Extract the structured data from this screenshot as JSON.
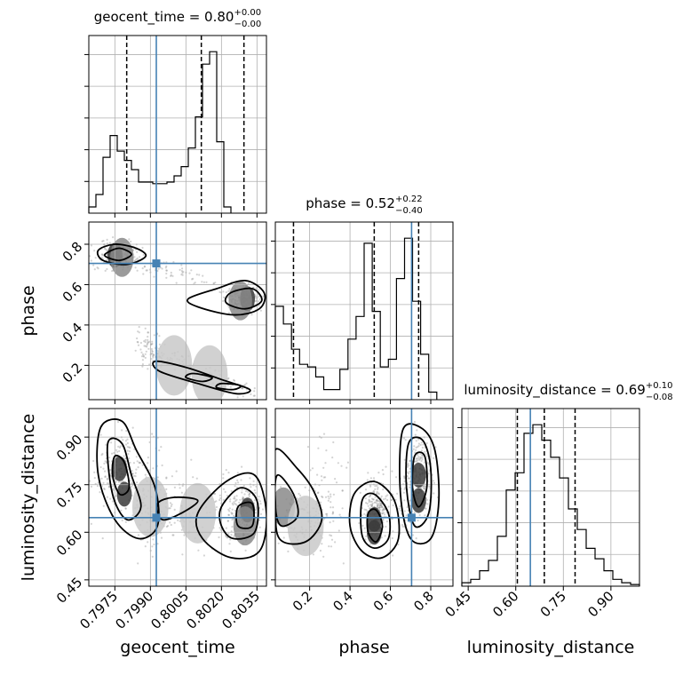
{
  "chart_data": {
    "type": "corner",
    "parameters": [
      "geocent_time",
      "phase",
      "luminosity_distance"
    ],
    "axis_labels": [
      "geocent_time",
      "phase",
      "luminosity_distance"
    ],
    "titles": [
      {
        "param": "geocent_time",
        "name": "geocent_time",
        "median": "0.80",
        "plus": "+0.00",
        "minus": "−0.00"
      },
      {
        "param": "phase",
        "name": "phase",
        "median": "0.52",
        "plus": "+0.22",
        "minus": "−0.40"
      },
      {
        "param": "luminosity_distance",
        "name": "luminosity_distance",
        "median": "0.69",
        "plus": "+0.10",
        "minus": "−0.08"
      }
    ],
    "ranges": {
      "geocent_time": [
        0.7964,
        0.8039
      ],
      "phase": [
        0.03,
        0.91
      ],
      "luminosity_distance": [
        0.43,
        0.99
      ]
    },
    "tick_values": {
      "geocent_time": [
        0.7975,
        0.799,
        0.8005,
        0.802,
        0.8035
      ],
      "phase": [
        0.2,
        0.4,
        0.6,
        0.8
      ],
      "luminosity_distance": [
        0.45,
        0.6,
        0.75,
        0.9
      ]
    },
    "tick_labels": {
      "geocent_time": [
        "0.7975",
        "0.7990",
        "0.8005",
        "0.8020",
        "0.8035"
      ],
      "phase": [
        "0.2",
        "0.4",
        "0.6",
        "0.8"
      ],
      "luminosity_distance": [
        "0.45",
        "0.60",
        "0.75",
        "0.90"
      ]
    },
    "truths": {
      "geocent_time": 0.79925,
      "phase": 0.705,
      "luminosity_distance": 0.646
    },
    "quantiles": {
      "geocent_time": [
        0.798,
        0.80115,
        0.80295
      ],
      "phase": [
        0.12,
        0.52,
        0.74
      ],
      "luminosity_distance": [
        0.605,
        0.69,
        0.787
      ]
    },
    "histograms": {
      "geocent_time": {
        "bin_start": 0.7964,
        "bin_width": 0.0003,
        "counts": [
          2,
          6,
          18,
          25,
          20,
          17,
          14,
          10,
          10,
          9.5,
          9.5,
          10,
          12,
          15,
          21,
          31,
          48,
          52,
          23,
          2
        ]
      },
      "phase": {
        "bin_start": 0.03,
        "bin_width": 0.04,
        "counts": [
          37,
          30,
          20,
          14,
          13,
          9,
          4,
          4,
          12,
          24,
          33,
          62,
          35,
          13,
          16,
          48,
          64,
          39,
          18,
          3
        ]
      },
      "luminosity_distance": {
        "bin_start": 0.43,
        "bin_width": 0.028,
        "counts": [
          2,
          4,
          9,
          15,
          29,
          56,
          66,
          89,
          94,
          85,
          75,
          63,
          45,
          33,
          22,
          16,
          9,
          4,
          2,
          1
        ]
      }
    },
    "grid": true,
    "colors": {
      "truth": "#4682b4",
      "contour": "#000000",
      "hist": "#000000",
      "samples": "#808080"
    }
  }
}
